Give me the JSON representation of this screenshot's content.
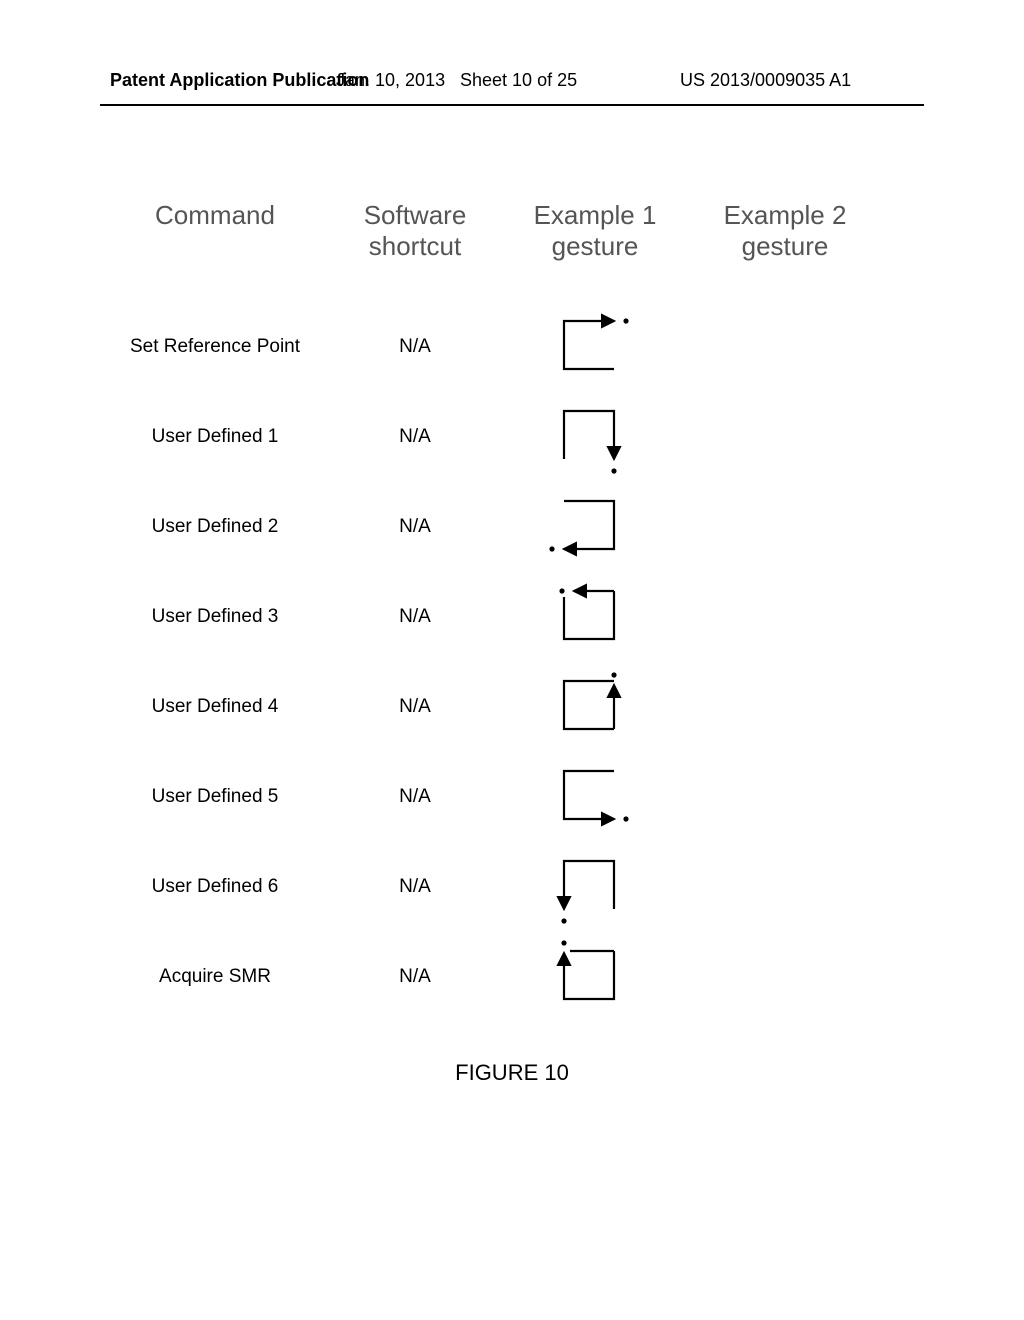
{
  "header": {
    "left": "Patent Application Publication",
    "date": "Jan. 10, 2013",
    "sheet": "Sheet 10 of 25",
    "pubno": "US 2013/0009035 A1"
  },
  "columns": {
    "c1_l1": "Command",
    "c2_l1": "Software",
    "c2_l2": "shortcut",
    "c3_l1": "Example 1",
    "c3_l2": "gesture",
    "c4_l1": "Example 2",
    "c4_l2": "gesture"
  },
  "rows": [
    {
      "command": "Set Reference Point",
      "shortcut": "N/A",
      "gesture": "g_ccw_top_right_out"
    },
    {
      "command": "User Defined 1",
      "shortcut": "N/A",
      "gesture": "g_cw_right_down_out"
    },
    {
      "command": "User Defined 2",
      "shortcut": "N/A",
      "gesture": "g_cw_bottom_left_out"
    },
    {
      "command": "User Defined 3",
      "shortcut": "N/A",
      "gesture": "g_cw_top_left_out"
    },
    {
      "command": "User Defined 4",
      "shortcut": "N/A",
      "gesture": "g_cw_right_up_out"
    },
    {
      "command": "User Defined 5",
      "shortcut": "N/A",
      "gesture": "g_ccw_bottom_right_out"
    },
    {
      "command": "User Defined 6",
      "shortcut": "N/A",
      "gesture": "g_ccw_left_down_out"
    },
    {
      "command": "Acquire SMR",
      "shortcut": "N/A",
      "gesture": "g_ccw_left_up_out"
    }
  ],
  "figure_label": "FIGURE 10",
  "style": {
    "stroke": "#000000",
    "stroke_width": 2.2,
    "dot_radius": 2.6,
    "arrow_size": 7
  }
}
